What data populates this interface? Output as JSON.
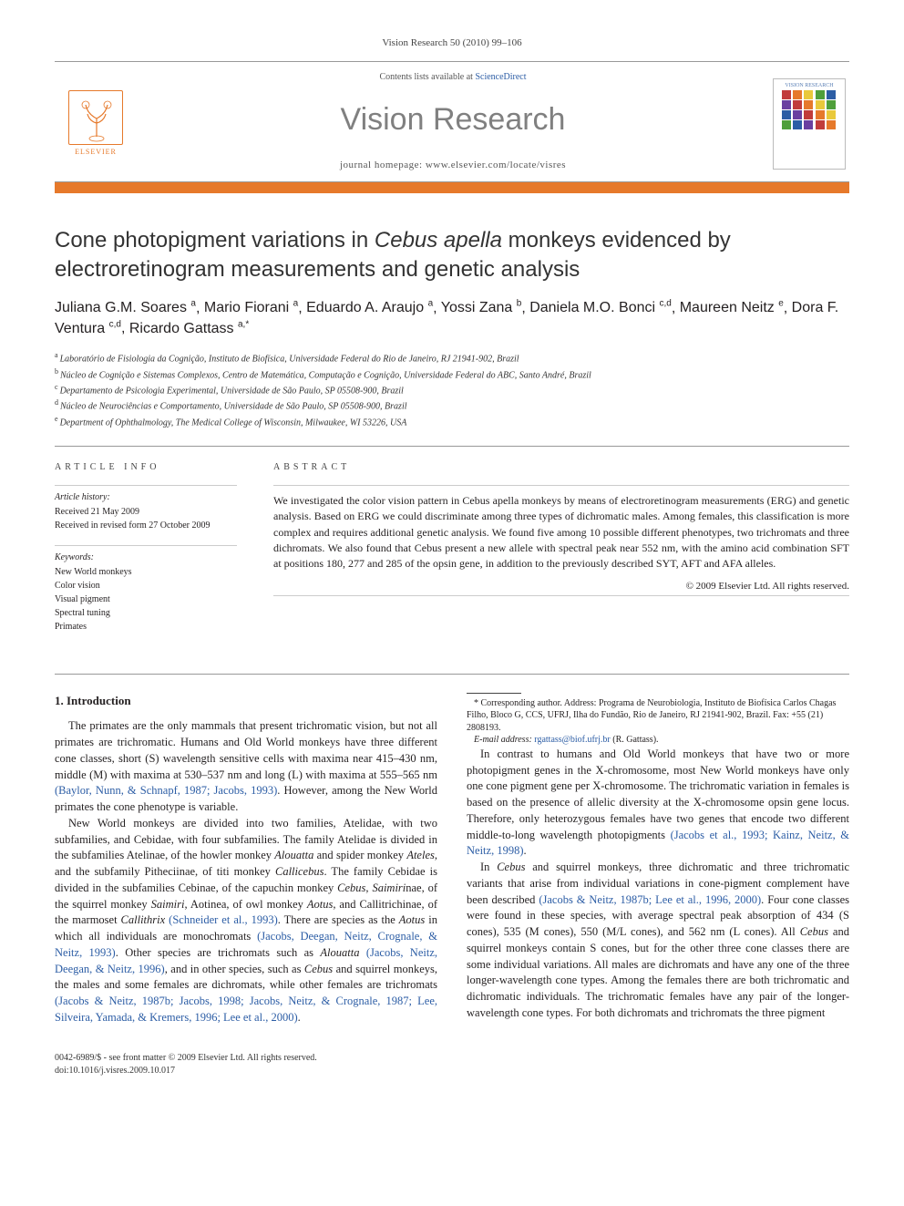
{
  "header": {
    "citation": "Vision Research 50 (2010) 99–106"
  },
  "masthead": {
    "publisher": "ELSEVIER",
    "contents_prefix": "Contents lists available at ",
    "contents_link": "ScienceDirect",
    "journal": "Vision Research",
    "homepage_prefix": "journal homepage: ",
    "homepage_url": "www.elsevier.com/locate/visres",
    "cover_label": "VISION RESEARCH",
    "accent_color": "#e6792b",
    "cover_colors": [
      "#c13b3b",
      "#e6792b",
      "#e9c93b",
      "#4f9f3b",
      "#2c5da5",
      "#6a3fa0",
      "#c13b3b",
      "#e6792b",
      "#e9c93b",
      "#4f9f3b",
      "#2c5da5",
      "#6a3fa0",
      "#c13b3b",
      "#e6792b",
      "#e9c93b",
      "#4f9f3b",
      "#2c5da5",
      "#6a3fa0",
      "#c13b3b",
      "#e6792b"
    ]
  },
  "title_pre": "Cone photopigment variations in ",
  "title_ital": "Cebus apella",
  "title_post": " monkeys evidenced by electroretinogram measurements and genetic analysis",
  "authors_html": "Juliana G.M. Soares|a|, Mario Fiorani|a|, Eduardo A. Araujo|a|, Yossi Zana|b|, Daniela M.O. Bonci|c,d|, Maureen Neitz|e|, Dora F. Ventura|c,d|, Ricardo Gattass|a,*|",
  "authors": [
    {
      "name": "Juliana G.M. Soares",
      "sup": "a"
    },
    {
      "name": "Mario Fiorani",
      "sup": "a"
    },
    {
      "name": "Eduardo A. Araujo",
      "sup": "a"
    },
    {
      "name": "Yossi Zana",
      "sup": "b"
    },
    {
      "name": "Daniela M.O. Bonci",
      "sup": "c,d"
    },
    {
      "name": "Maureen Neitz",
      "sup": "e"
    },
    {
      "name": "Dora F. Ventura",
      "sup": "c,d"
    },
    {
      "name": "Ricardo Gattass",
      "sup": "a,*"
    }
  ],
  "affiliations": [
    {
      "sup": "a",
      "text": "Laboratório de Fisiologia da Cognição, Instituto de Biofísica, Universidade Federal do Rio de Janeiro, RJ 21941-902, Brazil"
    },
    {
      "sup": "b",
      "text": "Núcleo de Cognição e Sistemas Complexos, Centro de Matemática, Computação e Cognição, Universidade Federal do ABC, Santo André, Brazil"
    },
    {
      "sup": "c",
      "text": "Departamento de Psicologia Experimental, Universidade de São Paulo, SP 05508-900, Brazil"
    },
    {
      "sup": "d",
      "text": "Núcleo de Neurociências e Comportamento, Universidade de São Paulo, SP 05508-900, Brazil"
    },
    {
      "sup": "e",
      "text": "Department of Ophthalmology, The Medical College of Wisconsin, Milwaukee, WI 53226, USA"
    }
  ],
  "article_info": {
    "heading": "ARTICLE INFO",
    "history_label": "Article history:",
    "history": [
      "Received 21 May 2009",
      "Received in revised form 27 October 2009"
    ],
    "keywords_label": "Keywords:",
    "keywords": [
      "New World monkeys",
      "Color vision",
      "Visual pigment",
      "Spectral tuning",
      "Primates"
    ]
  },
  "abstract": {
    "heading": "ABSTRACT",
    "text": "We investigated the color vision pattern in Cebus apella monkeys by means of electroretinogram measurements (ERG) and genetic analysis. Based on ERG we could discriminate among three types of dichromatic males. Among females, this classification is more complex and requires additional genetic analysis. We found five among 10 possible different phenotypes, two trichromats and three dichromats. We also found that Cebus present a new allele with spectral peak near 552 nm, with the amino acid combination SFT at positions 180, 277 and 285 of the opsin gene, in addition to the previously described SYT, AFT and AFA alleles.",
    "copyright": "© 2009 Elsevier Ltd. All rights reserved."
  },
  "body": {
    "section_heading": "1. Introduction",
    "p1": "The primates are the only mammals that present trichromatic vision, but not all primates are trichromatic. Humans and Old World monkeys have three different cone classes, short (S) wavelength sensitive cells with maxima near 415–430 nm, middle (M) with maxima at 530–537 nm and long (L) with maxima at 555–565 nm (Baylor, Nunn, & Schnapf, 1987; Jacobs, 1993). However, among the New World primates the cone phenotype is variable.",
    "p2": "New World monkeys are divided into two families, Atelidae, with two subfamilies, and Cebidae, with four subfamilies. The family Atelidae is divided in the subfamilies Atelinae, of the howler monkey Alouatta and spider monkey Ateles, and the subfamily Pitheciinae, of titi monkey Callicebus. The family Cebidae is divided in the subfamilies Cebinae, of the capuchin monkey Cebus, Saimirinae, of the squirrel monkey Saimiri, Aotinea, of owl monkey Aotus, and Callitrichinae, of the marmoset Callithrix (Schneider et al., 1993). There are species as the Aotus in which all individuals are monochromats (Jacobs, Deegan, Neitz, Crognale, & Neitz, 1993). Other species are trichromats such as Alouatta (Jacobs, Neitz, Deegan, & Neitz, 1996), and in other species, such as Cebus and squirrel monkeys, the males and some females are dichromats, while other females are trichromats (Jacobs & Neitz, 1987b; Jacobs, 1998; Jacobs, Neitz, & Crognale, 1987; Lee, Silveira, Yamada, & Kremers, 1996; Lee et al., 2000).",
    "p3": "In contrast to humans and Old World monkeys that have two or more photopigment genes in the X-chromosome, most New World monkeys have only one cone pigment gene per X-chromosome. The trichromatic variation in females is based on the presence of allelic diversity at the X-chromosome opsin gene locus. Therefore, only heterozygous females have two genes that encode two different middle-to-long wavelength photopigments (Jacobs et al., 1993; Kainz, Neitz, & Neitz, 1998).",
    "p4": "In Cebus and squirrel monkeys, three dichromatic and three trichromatic variants that arise from individual variations in cone-pigment complement have been described (Jacobs & Neitz, 1987b; Lee et al., 1996, 2000). Four cone classes were found in these species, with average spectral peak absorption of 434 (S cones), 535 (M cones), 550 (M/L cones), and 562 nm (L cones). All Cebus and squirrel monkeys contain S cones, but for the other three cone classes there are some individual variations. All males are dichromats and have any one of the three longer-wavelength cone types. Among the females there are both trichromatic and dichromatic individuals. The trichromatic females have any pair of the longer-wavelength cone types. For both dichromats and trichromats the three pigment"
  },
  "footnote": {
    "corr_label": "* Corresponding author. ",
    "corr_text": "Address: Programa de Neurobiologia, Instituto de Biofísica Carlos Chagas Filho, Bloco G, CCS, UFRJ, Ilha do Fundão, Rio de Janeiro, RJ 21941-902, Brazil. Fax: +55 (21) 2808193.",
    "email_label": "E-mail address: ",
    "email": "rgattass@biof.ufrj.br",
    "email_suffix": " (R. Gattass)."
  },
  "footer": {
    "line1": "0042-6989/$ - see front matter © 2009 Elsevier Ltd. All rights reserved.",
    "line2": "doi:10.1016/j.visres.2009.10.017"
  }
}
